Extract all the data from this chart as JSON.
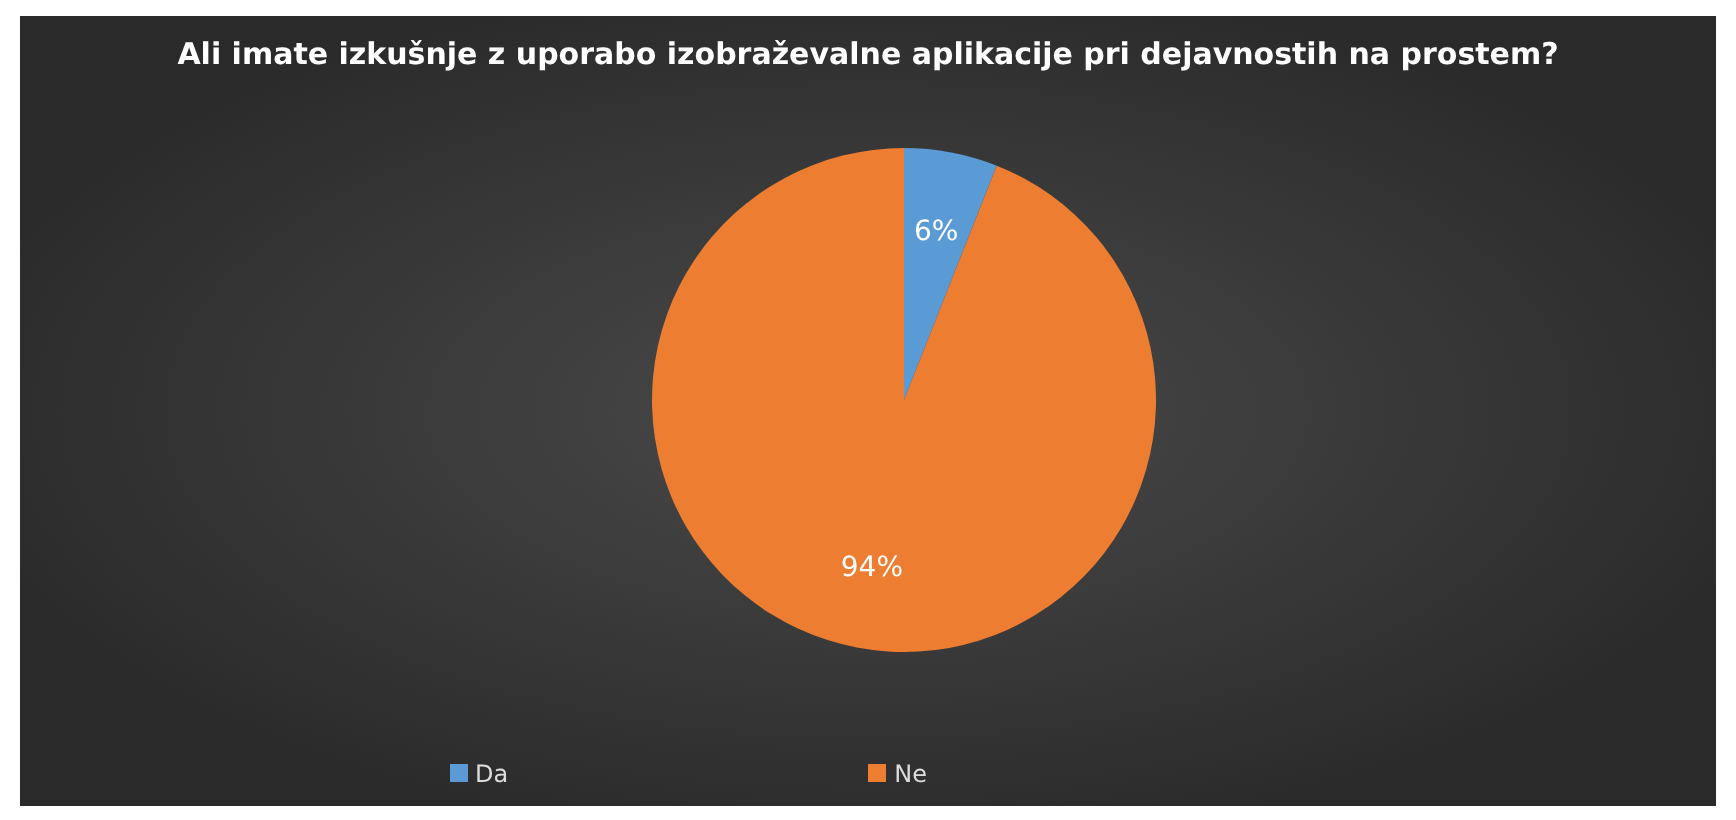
{
  "chart_data": {
    "type": "pie",
    "title": "Ali imate izkušnje z uporabo izobraževalne aplikacije pri dejavnostih na prostem?",
    "categories": [
      "Da",
      "Ne"
    ],
    "values": [
      6,
      94
    ],
    "colors": [
      "#5b9bd5",
      "#ed7d31"
    ],
    "value_labels": [
      "6%",
      "94%"
    ],
    "legend": "bottom"
  }
}
